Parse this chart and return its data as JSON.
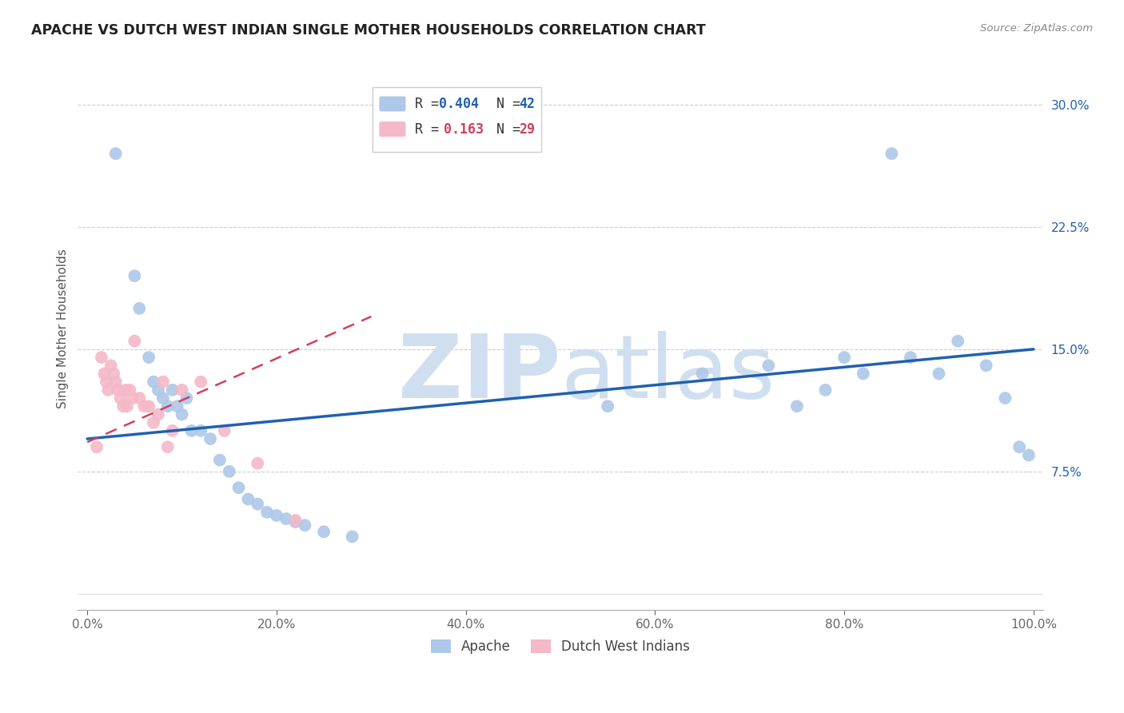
{
  "title": "APACHE VS DUTCH WEST INDIAN SINGLE MOTHER HOUSEHOLDS CORRELATION CHART",
  "source": "Source: ZipAtlas.com",
  "ylabel": "Single Mother Households",
  "xlim": [
    -0.01,
    1.01
  ],
  "ylim": [
    -0.01,
    0.335
  ],
  "yticks": [
    0.075,
    0.15,
    0.225,
    0.3
  ],
  "ytick_labels": [
    "7.5%",
    "15.0%",
    "22.5%",
    "30.0%"
  ],
  "xticks": [
    0.0,
    0.2,
    0.4,
    0.6,
    0.8,
    1.0
  ],
  "xtick_labels": [
    "0.0%",
    "20.0%",
    "40.0%",
    "60.0%",
    "80.0%",
    "100.0%"
  ],
  "apache_R": 0.404,
  "apache_N": 42,
  "dutch_R": 0.163,
  "dutch_N": 29,
  "apache_color": "#adc8e8",
  "dutch_color": "#f4b8c8",
  "apache_line_color": "#2060b0",
  "dutch_line_color": "#d04060",
  "background_color": "#ffffff",
  "watermark_color": "#d0dff0",
  "apache_x": [
    0.03,
    0.05,
    0.055,
    0.065,
    0.07,
    0.075,
    0.08,
    0.085,
    0.09,
    0.095,
    0.1,
    0.105,
    0.11,
    0.12,
    0.13,
    0.14,
    0.15,
    0.16,
    0.17,
    0.18,
    0.19,
    0.2,
    0.21,
    0.22,
    0.23,
    0.25,
    0.28,
    0.55,
    0.65,
    0.72,
    0.75,
    0.78,
    0.8,
    0.82,
    0.85,
    0.87,
    0.9,
    0.92,
    0.95,
    0.97,
    0.985,
    0.995
  ],
  "apache_y": [
    0.27,
    0.195,
    0.175,
    0.145,
    0.13,
    0.125,
    0.12,
    0.115,
    0.125,
    0.115,
    0.11,
    0.12,
    0.1,
    0.1,
    0.095,
    0.082,
    0.075,
    0.065,
    0.058,
    0.055,
    0.05,
    0.048,
    0.046,
    0.044,
    0.042,
    0.038,
    0.035,
    0.115,
    0.135,
    0.14,
    0.115,
    0.125,
    0.145,
    0.135,
    0.27,
    0.145,
    0.135,
    0.155,
    0.14,
    0.12,
    0.09,
    0.085
  ],
  "dutch_x": [
    0.01,
    0.015,
    0.018,
    0.02,
    0.022,
    0.025,
    0.028,
    0.03,
    0.032,
    0.035,
    0.038,
    0.04,
    0.042,
    0.045,
    0.048,
    0.05,
    0.055,
    0.06,
    0.065,
    0.07,
    0.075,
    0.08,
    0.085,
    0.09,
    0.1,
    0.12,
    0.145,
    0.18,
    0.22
  ],
  "dutch_y": [
    0.09,
    0.145,
    0.135,
    0.13,
    0.125,
    0.14,
    0.135,
    0.13,
    0.125,
    0.12,
    0.115,
    0.125,
    0.115,
    0.125,
    0.12,
    0.155,
    0.12,
    0.115,
    0.115,
    0.105,
    0.11,
    0.13,
    0.09,
    0.1,
    0.125,
    0.13,
    0.1,
    0.08,
    0.045
  ],
  "apache_trend_x": [
    0.0,
    1.0
  ],
  "apache_trend_y": [
    0.095,
    0.15
  ],
  "dutch_trend_x": [
    0.0,
    0.3
  ],
  "dutch_trend_y": [
    0.093,
    0.17
  ]
}
